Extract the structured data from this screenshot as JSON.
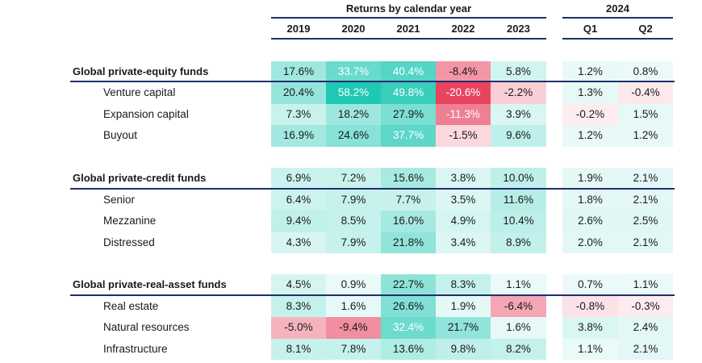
{
  "chart_data": {
    "type": "heatmap",
    "title": "",
    "header_groups": [
      {
        "label": "Returns by calendar year",
        "columns": [
          "2019",
          "2020",
          "2021",
          "2022",
          "2023"
        ]
      },
      {
        "label": "2024",
        "columns": [
          "Q1",
          "Q2"
        ]
      }
    ],
    "columns": [
      "2019",
      "2020",
      "2021",
      "2022",
      "2023",
      "Q1",
      "Q2"
    ],
    "unit": "%",
    "color_scale": {
      "positive": "#1ec8b4",
      "negative": "#e8445f",
      "neutral": "#ffffff",
      "max_abs_positive": 58.2,
      "max_abs_negative": 20.6
    },
    "sections": [
      {
        "name": "Global private-equity funds",
        "values": [
          17.6,
          33.7,
          40.4,
          -8.4,
          5.8,
          1.2,
          0.8
        ],
        "rows": [
          {
            "name": "Venture capital",
            "values": [
              20.4,
              58.2,
              49.8,
              -20.6,
              -2.2,
              1.3,
              -0.4
            ]
          },
          {
            "name": "Expansion capital",
            "values": [
              7.3,
              18.2,
              27.9,
              -11.3,
              3.9,
              -0.2,
              1.5
            ]
          },
          {
            "name": "Buyout",
            "values": [
              16.9,
              24.6,
              37.7,
              -1.5,
              9.6,
              1.2,
              1.2
            ]
          }
        ]
      },
      {
        "name": "Global private-credit funds",
        "values": [
          6.9,
          7.2,
          15.6,
          3.8,
          10.0,
          1.9,
          2.1
        ],
        "rows": [
          {
            "name": "Senior",
            "values": [
              6.4,
              7.9,
              7.7,
              3.5,
              11.6,
              1.8,
              2.1
            ]
          },
          {
            "name": "Mezzanine",
            "values": [
              9.4,
              8.5,
              16.0,
              4.9,
              10.4,
              2.6,
              2.5
            ]
          },
          {
            "name": "Distressed",
            "values": [
              4.3,
              7.9,
              21.8,
              3.4,
              8.9,
              2.0,
              2.1
            ]
          }
        ]
      },
      {
        "name": "Global private-real-asset funds",
        "values": [
          4.5,
          0.9,
          22.7,
          8.3,
          1.1,
          0.7,
          1.1
        ],
        "rows": [
          {
            "name": "Real estate",
            "values": [
              8.3,
              1.6,
              26.6,
              1.9,
              -6.4,
              -0.8,
              -0.3
            ]
          },
          {
            "name": "Natural resources",
            "values": [
              -5.0,
              -9.4,
              32.4,
              21.7,
              1.6,
              3.8,
              2.4
            ]
          },
          {
            "name": "Infrastructure",
            "values": [
              8.1,
              7.8,
              13.6,
              9.8,
              8.2,
              1.1,
              2.1
            ]
          }
        ]
      }
    ]
  }
}
